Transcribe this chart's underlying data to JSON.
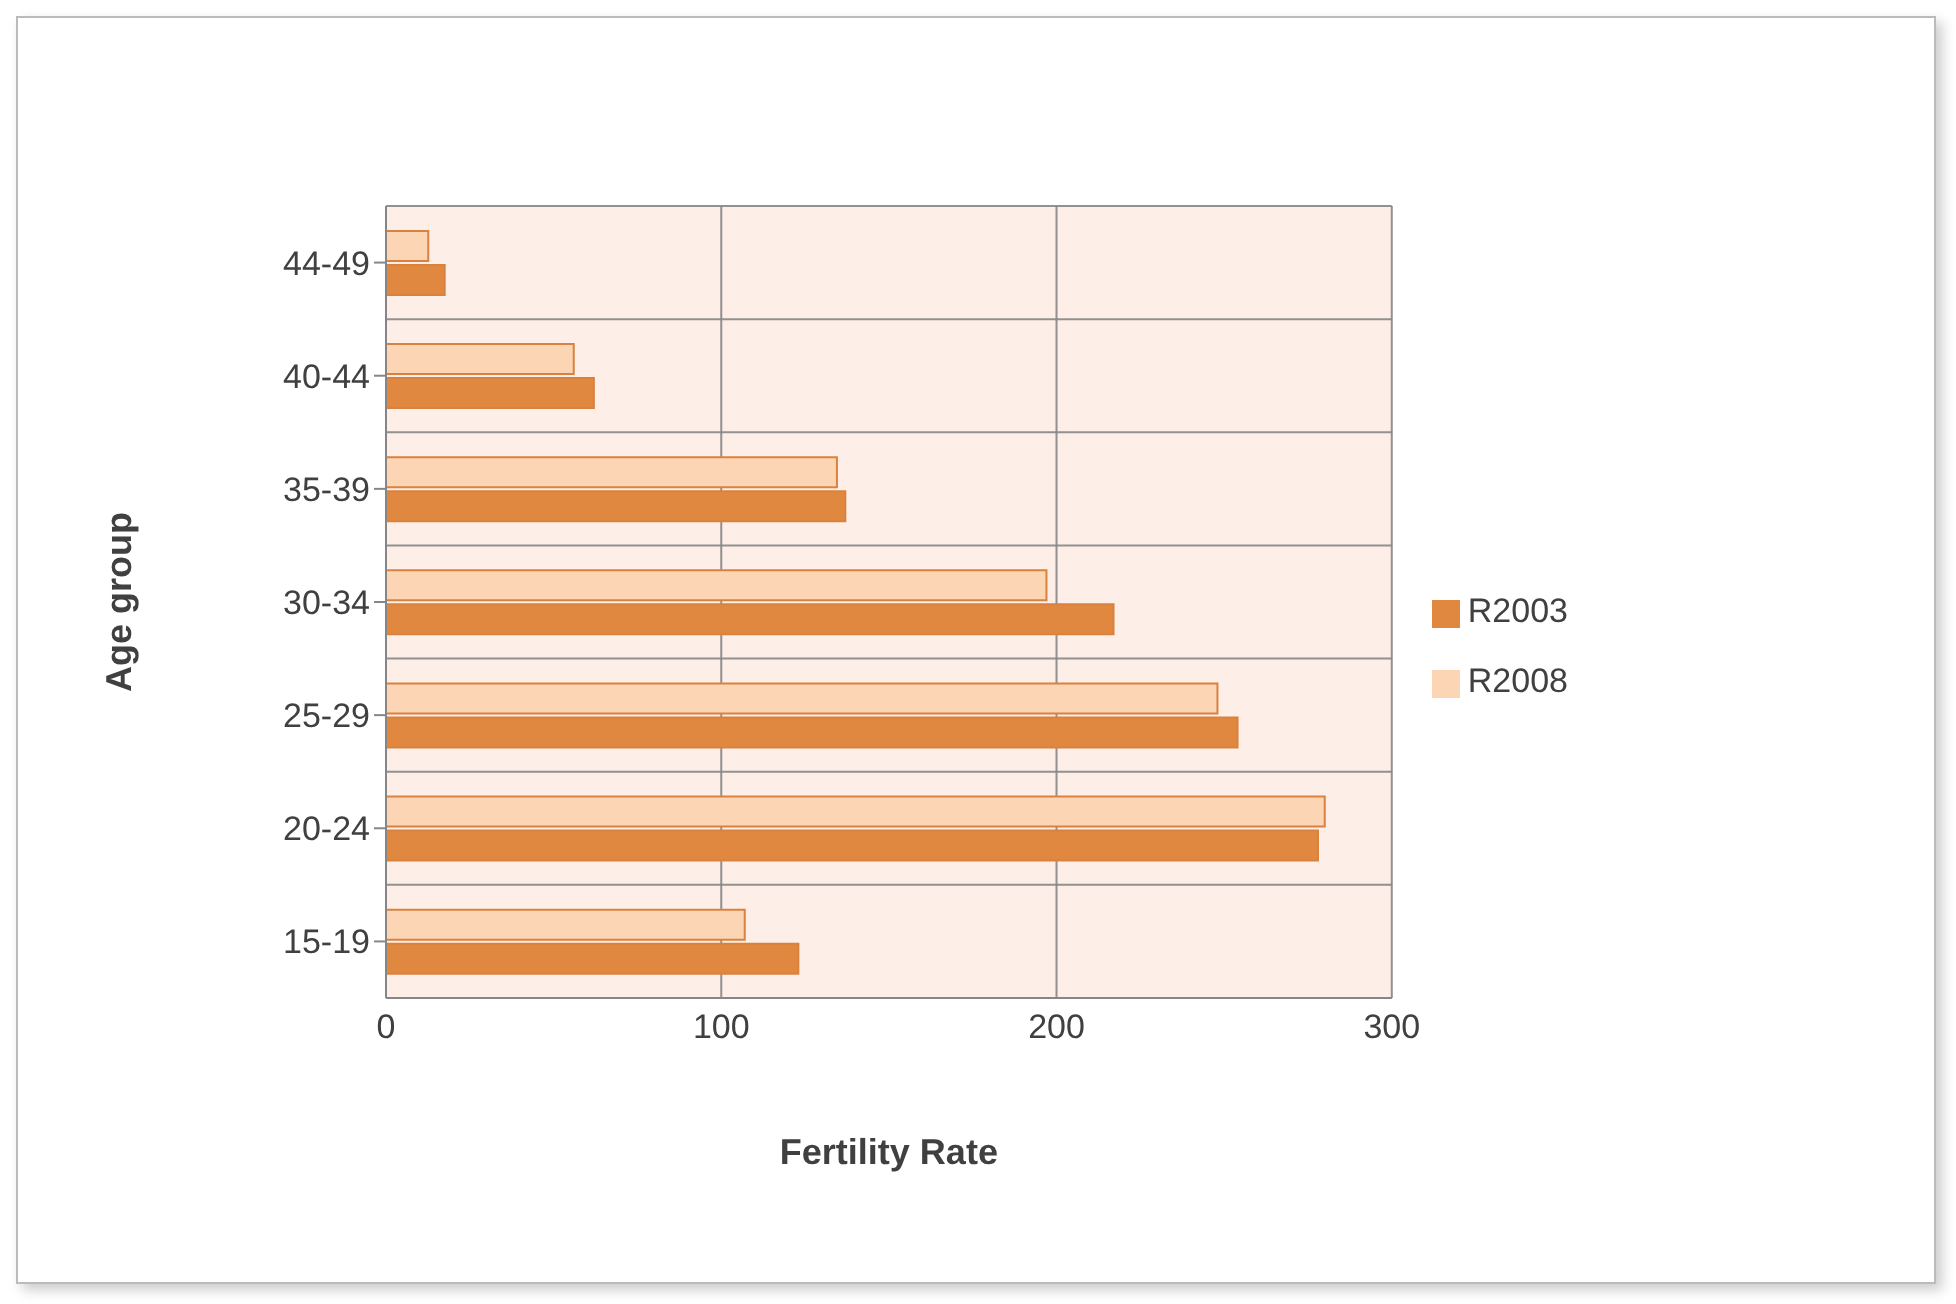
{
  "chart_data": {
    "type": "bar",
    "orientation": "horizontal",
    "xlabel": "Fertility Rate",
    "ylabel": "Age group",
    "categories": [
      "44-49",
      "40-44",
      "35-39",
      "30-34",
      "25-29",
      "20-24",
      "15-19"
    ],
    "series": [
      {
        "name": "R2008",
        "color": "#fcd5b5",
        "values": [
          12.6,
          56,
          134.5,
          197,
          248,
          280,
          107
        ]
      },
      {
        "name": "R2003",
        "color": "#e0883f",
        "values": [
          17.5,
          62,
          137,
          217,
          254,
          278,
          123
        ]
      }
    ],
    "xlim": [
      0,
      300
    ],
    "xticks": [
      0,
      100,
      200,
      300
    ],
    "grid": true,
    "legend": "right"
  }
}
